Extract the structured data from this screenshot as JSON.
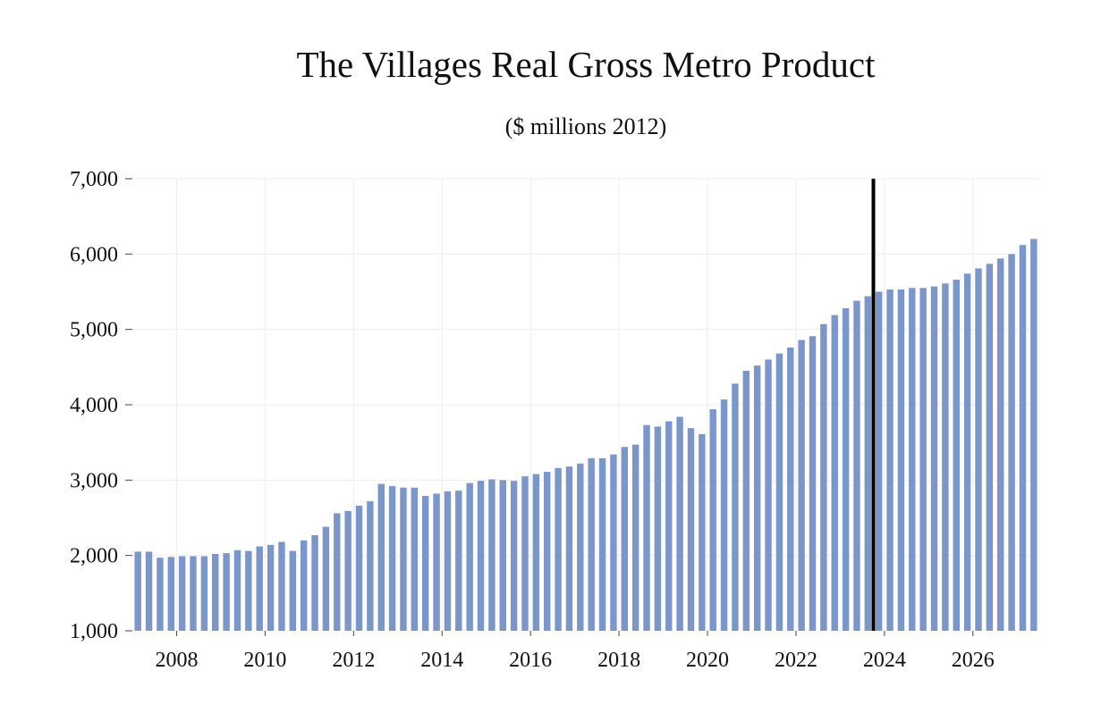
{
  "chart_data": {
    "type": "bar",
    "title": "The Villages Real Gross Metro Product",
    "subtitle": "($ millions 2012)",
    "xlabel": "",
    "ylabel": "",
    "ylim": [
      1000,
      7000
    ],
    "yticks": [
      1000,
      2000,
      3000,
      4000,
      5000,
      6000,
      7000
    ],
    "ytick_labels": [
      "1,000",
      "2,000",
      "3,000",
      "4,000",
      "5,000",
      "6,000",
      "7,000"
    ],
    "xtick_labels": [
      "2008",
      "2010",
      "2012",
      "2014",
      "2016",
      "2018",
      "2020",
      "2022",
      "2024",
      "2026"
    ],
    "start_year": 2007,
    "start_quarter": 1,
    "forecast_marker": "2023Q4",
    "bar_color": "#7b96cb",
    "marker_color": "#000000",
    "values": [
      2050,
      2050,
      1970,
      1980,
      1990,
      1990,
      1990,
      2020,
      2030,
      2070,
      2060,
      2120,
      2140,
      2180,
      2060,
      2200,
      2270,
      2380,
      2560,
      2590,
      2660,
      2720,
      2950,
      2920,
      2900,
      2900,
      2790,
      2820,
      2850,
      2860,
      2960,
      2990,
      3010,
      3000,
      2990,
      3050,
      3080,
      3110,
      3160,
      3180,
      3220,
      3290,
      3290,
      3340,
      3440,
      3470,
      3730,
      3710,
      3780,
      3840,
      3690,
      3610,
      3940,
      4070,
      4280,
      4450,
      4520,
      4600,
      4680,
      4760,
      4860,
      4910,
      5070,
      5190,
      5280,
      5380,
      5440,
      5500,
      5530,
      5530,
      5550,
      5550,
      5570,
      5610,
      5660,
      5740,
      5810,
      5870,
      5940,
      6000,
      6120,
      6200
    ]
  }
}
